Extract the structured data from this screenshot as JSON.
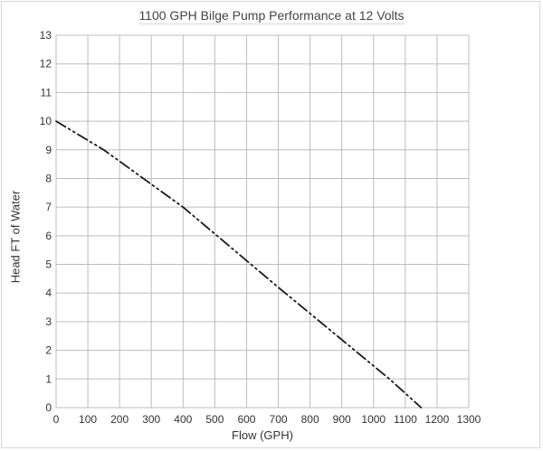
{
  "chart_data": {
    "type": "line",
    "title": "1100 GPH Bilge Pump Performance at 12 Volts",
    "xlabel": "Flow (GPH)",
    "ylabel": "Head FT of Water",
    "xlim": [
      0,
      1300
    ],
    "ylim": [
      0,
      13
    ],
    "xticks": [
      "0",
      "100",
      "200",
      "300",
      "400",
      "500",
      "600",
      "700",
      "800",
      "900",
      "1000",
      "1100",
      "1200",
      "1300"
    ],
    "yticks": [
      "0",
      "1",
      "2",
      "3",
      "4",
      "5",
      "6",
      "7",
      "8",
      "9",
      "10",
      "11",
      "12",
      "13"
    ],
    "grid": true,
    "line_style": "dash-dot-dot",
    "line_color": "#1a1a1a",
    "grid_color": "#bdbdbd",
    "series": [
      {
        "x": [
          0,
          150,
          400,
          700,
          1050,
          1150
        ],
        "y": [
          10,
          9,
          7,
          4.2,
          1,
          0
        ]
      }
    ]
  }
}
